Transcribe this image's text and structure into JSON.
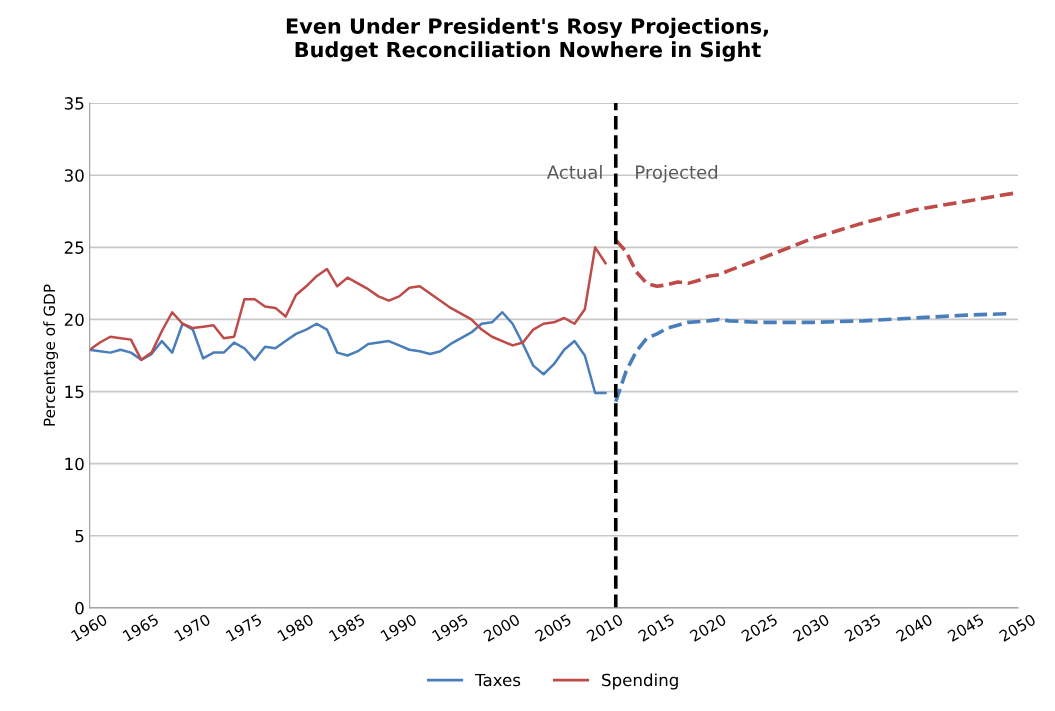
{
  "chart_data": {
    "type": "line",
    "title": "Even Under President's Rosy Projections,\nBudget Reconciliation Nowhere in Sight",
    "ylabel": "Percentage of GDP",
    "series": [
      {
        "name": "Taxes",
        "color": "#4a7ebb",
        "line_style": "solid",
        "x": [
          1960,
          1961,
          1962,
          1963,
          1964,
          1965,
          1966,
          1967,
          1968,
          1969,
          1970,
          1971,
          1972,
          1973,
          1974,
          1975,
          1976,
          1977,
          1978,
          1979,
          1980,
          1981,
          1982,
          1983,
          1984,
          1985,
          1986,
          1987,
          1988,
          1989,
          1990,
          1991,
          1992,
          1993,
          1994,
          1995,
          1996,
          1997,
          1998,
          1999,
          2000,
          2001,
          2002,
          2003,
          2004,
          2005,
          2006,
          2007,
          2008,
          2009,
          2010
        ],
        "values": [
          17.9,
          17.8,
          17.7,
          17.9,
          17.7,
          17.2,
          17.6,
          18.5,
          17.7,
          19.7,
          19.3,
          17.3,
          17.7,
          17.7,
          18.4,
          18.0,
          17.2,
          18.1,
          18.0,
          18.5,
          19.0,
          19.3,
          19.7,
          19.3,
          17.7,
          17.5,
          17.8,
          18.3,
          18.4,
          18.5,
          18.2,
          17.9,
          17.8,
          17.6,
          17.8,
          18.3,
          18.7,
          19.1,
          19.7,
          19.8,
          20.5,
          19.7,
          18.3,
          16.8,
          16.2,
          16.9,
          17.9,
          18.5,
          17.5,
          14.9,
          14.9
        ]
      },
      {
        "name": "Spending",
        "color": "#be4b48",
        "line_style": "solid",
        "x": [
          1960,
          1961,
          1962,
          1963,
          1964,
          1965,
          1966,
          1967,
          1968,
          1969,
          1970,
          1971,
          1972,
          1973,
          1974,
          1975,
          1976,
          1977,
          1978,
          1979,
          1980,
          1981,
          1982,
          1983,
          1984,
          1985,
          1986,
          1987,
          1988,
          1989,
          1990,
          1991,
          1992,
          1993,
          1994,
          1995,
          1996,
          1997,
          1998,
          1999,
          2000,
          2001,
          2002,
          2003,
          2004,
          2005,
          2006,
          2007,
          2008,
          2009,
          2010
        ],
        "values": [
          17.9,
          18.4,
          18.8,
          18.7,
          18.6,
          17.2,
          17.7,
          19.2,
          20.5,
          19.7,
          19.4,
          19.5,
          19.6,
          18.7,
          18.8,
          21.4,
          21.4,
          20.9,
          20.8,
          20.2,
          21.7,
          22.3,
          23.0,
          23.5,
          22.3,
          22.9,
          22.5,
          22.1,
          21.6,
          21.3,
          21.6,
          22.2,
          22.3,
          21.8,
          21.3,
          20.8,
          20.4,
          20.0,
          19.3,
          18.8,
          18.5,
          18.2,
          18.4,
          19.3,
          19.7,
          19.8,
          20.1,
          19.7,
          20.7,
          25.0,
          23.9
        ]
      },
      {
        "color": "#4a7ebb",
        "line_style": "dashed",
        "x": [
          2011,
          2012,
          2013,
          2014,
          2015,
          2016,
          2017,
          2018,
          2020,
          2021,
          2022,
          2025,
          2030,
          2035,
          2040,
          2045,
          2049
        ],
        "values": [
          14.3,
          16.4,
          17.8,
          18.7,
          19.0,
          19.4,
          19.6,
          19.8,
          19.9,
          20.0,
          19.9,
          19.8,
          19.8,
          19.9,
          20.1,
          20.3,
          20.4
        ]
      },
      {
        "color": "#be4b48",
        "line_style": "dashed",
        "x": [
          2011,
          2012,
          2013,
          2014,
          2015,
          2016,
          2017,
          2018,
          2019,
          2020,
          2021,
          2022,
          2025,
          2030,
          2035,
          2040,
          2045,
          2050
        ],
        "values": [
          25.5,
          24.7,
          23.3,
          22.5,
          22.3,
          22.4,
          22.6,
          22.5,
          22.7,
          23.0,
          23.1,
          23.4,
          24.2,
          25.6,
          26.7,
          27.6,
          28.2,
          28.8
        ]
      }
    ],
    "ref_lines": [
      {
        "axis": "x",
        "value": 2011,
        "color": "#000000",
        "line_style": "dashed"
      }
    ],
    "annotations": [
      "Actual",
      "Projected"
    ],
    "xlim": [
      1960,
      2050
    ],
    "xticks": [
      1960,
      1965,
      1970,
      1975,
      1980,
      1985,
      1990,
      1995,
      2000,
      2005,
      2010,
      2015,
      2020,
      2025,
      2030,
      2035,
      2040,
      2045,
      2050
    ],
    "ylim": [
      0,
      35
    ],
    "yticks": [
      0,
      5,
      10,
      15,
      20,
      25,
      30,
      35
    ],
    "grid": "y",
    "legend": "bottom"
  }
}
